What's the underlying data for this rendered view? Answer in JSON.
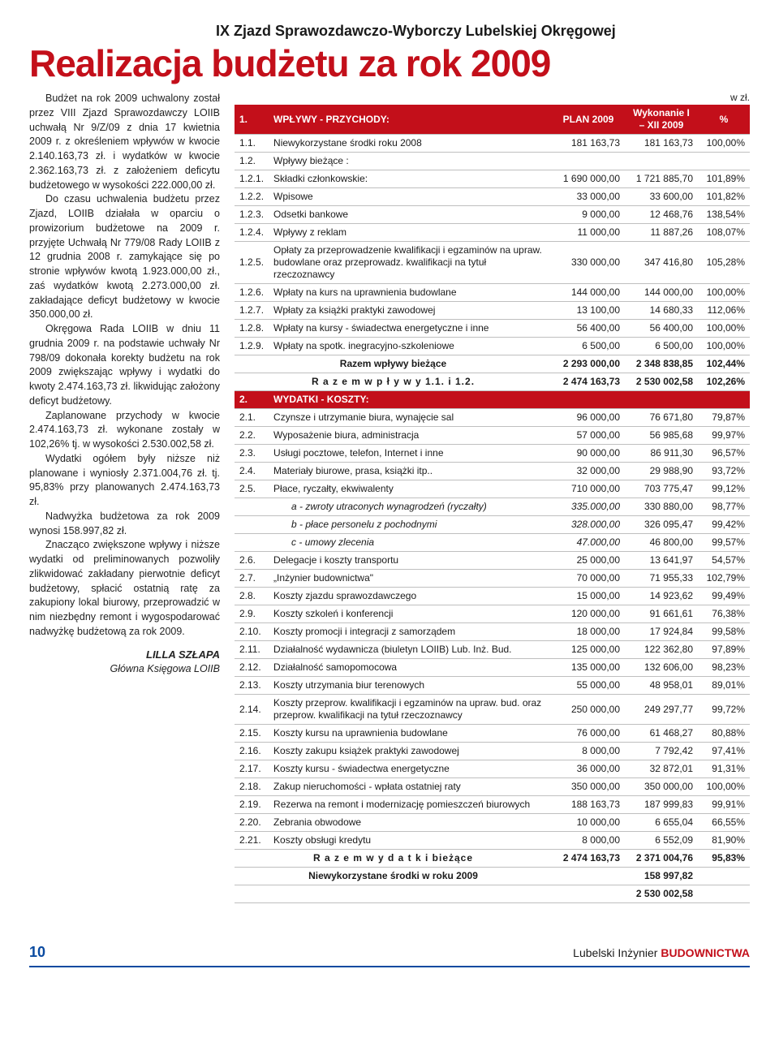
{
  "kicker": "IX Zjazd Sprawozdawczo-Wyborczy Lubelskiej Okręgowej",
  "headline": "Realizacja budżetu za rok 2009",
  "unit_label": "w zł.",
  "article": {
    "paragraphs": [
      "Budżet na rok 2009 uchwalony został przez VIII Zjazd Sprawozdawczy LOIIB uchwałą Nr 9/Z/09 z dnia 17 kwietnia 2009 r. z określeniem wpływów w kwocie 2.140.163,73 zł. i wydatków w kwocie 2.362.163,73 zł. z założeniem deficytu budżetowego w wysokości 222.000,00 zł.",
      "Do czasu uchwalenia budżetu przez Zjazd, LOIIB działała w oparciu o prowizorium budżetowe na 2009 r. przyjęte Uchwałą Nr 779/08 Rady LOIIB z 12 grudnia 2008 r. zamykające się po stronie wpływów kwotą 1.923.000,00 zł., zaś wydatków kwotą 2.273.000,00 zł. zakładające deficyt budżetowy w kwocie 350.000,00 zł.",
      "Okręgowa Rada LOIIB w dniu 11 grudnia 2009 r. na podstawie uchwały Nr 798/09 dokonała korekty budżetu na rok 2009 zwiększając wpływy i wydatki do kwoty 2.474.163,73 zł. likwidując założony deficyt budżetowy.",
      "Zaplanowane przychody w kwocie 2.474.163,73 zł. wykonane zostały w 102,26% tj. w wysokości 2.530.002,58 zł.",
      "Wydatki ogółem były niższe niż planowane i wyniosły 2.371.004,76 zł. tj. 95,83% przy planowanych 2.474.163,73 zł.",
      "Nadwyżka budżetowa za rok 2009 wynosi 158.997,82 zł.",
      "Znacząco zwiększone wpływy i niższe wydatki od preliminowanych pozwoliły zlikwidować zakładany pierwotnie deficyt budżetowy, spłacić ostatnią ratę za zakupiony lokal biurowy, przeprowadzić w nim niezbędny remont i wygospodarować nadwyżkę budżetową za rok 2009."
    ],
    "signature_name": "LILLA SZŁAPA",
    "signature_role": "Główna Księgowa LOIIB"
  },
  "table": {
    "header": {
      "col1": "1.",
      "col2": "WPŁYWY - PRZYCHODY:",
      "col3": "PLAN 2009",
      "col4": "Wykonanie I – XII 2009",
      "col5": "%"
    },
    "incomes": [
      {
        "c": "1.1.",
        "l": "Niewykorzystane środki roku 2008",
        "p": "181 163,73",
        "w": "181 163,73",
        "pct": "100,00%"
      },
      {
        "c": "1.2.",
        "l": "Wpływy bieżące :",
        "p": "",
        "w": "",
        "pct": ""
      },
      {
        "c": "1.2.1.",
        "l": "Składki członkowskie:",
        "p": "1 690 000,00",
        "w": "1 721 885,70",
        "pct": "101,89%"
      },
      {
        "c": "1.2.2.",
        "l": "Wpisowe",
        "p": "33 000,00",
        "w": "33 600,00",
        "pct": "101,82%"
      },
      {
        "c": "1.2.3.",
        "l": "Odsetki bankowe",
        "p": "9 000,00",
        "w": "12 468,76",
        "pct": "138,54%"
      },
      {
        "c": "1.2.4.",
        "l": "Wpływy z reklam",
        "p": "11 000,00",
        "w": "11 887,26",
        "pct": "108,07%"
      },
      {
        "c": "1.2.5.",
        "l": "Opłaty za przeprowadzenie kwalifikacji i egzaminów na upraw. budowlane oraz przeprowadz. kwalifikacji na tytuł rzeczoznawcy",
        "p": "330 000,00",
        "w": "347 416,80",
        "pct": "105,28%"
      },
      {
        "c": "1.2.6.",
        "l": "Wpłaty na kurs na uprawnienia budowlane",
        "p": "144 000,00",
        "w": "144 000,00",
        "pct": "100,00%"
      },
      {
        "c": "1.2.7.",
        "l": "Wpłaty za książki praktyki zawodowej",
        "p": "13 100,00",
        "w": "14 680,33",
        "pct": "112,06%"
      },
      {
        "c": "1.2.8.",
        "l": "Wpłaty na kursy - świadectwa energetyczne i inne",
        "p": "56 400,00",
        "w": "56 400,00",
        "pct": "100,00%"
      },
      {
        "c": "1.2.9.",
        "l": "Wpłaty na spotk. inegracyjno-szkoleniowe",
        "p": "6 500,00",
        "w": "6 500,00",
        "pct": "100,00%"
      }
    ],
    "sum_incomes_current": {
      "l": "Razem wpływy bieżące",
      "p": "2 293 000,00",
      "w": "2 348 838,85",
      "pct": "102,44%"
    },
    "sum_incomes_total": {
      "l": "R a z e m   w p ł y w y 1.1. i 1.2.",
      "p": "2 474 163,73",
      "w": "2 530 002,58",
      "pct": "102,26%"
    },
    "expenses_header": {
      "c": "2.",
      "l": "WYDATKI - KOSZTY:"
    },
    "expenses": [
      {
        "c": "2.1.",
        "l": "Czynsze i utrzymanie biura, wynajęcie sal",
        "p": "96 000,00",
        "w": "76 671,80",
        "pct": "79,87%"
      },
      {
        "c": "2.2.",
        "l": "Wyposażenie biura, administracja",
        "p": "57 000,00",
        "w": "56 985,68",
        "pct": "99,97%"
      },
      {
        "c": "2.3.",
        "l": "Usługi pocztowe, telefon, Internet i inne",
        "p": "90 000,00",
        "w": "86 911,30",
        "pct": "96,57%"
      },
      {
        "c": "2.4.",
        "l": "Materiały biurowe, prasa, książki itp..",
        "p": "32 000,00",
        "w": "29 988,90",
        "pct": "93,72%"
      },
      {
        "c": "2.5.",
        "l": "Płace, ryczałty, ekwiwalenty",
        "p": "710 000,00",
        "w": "703 775,47",
        "pct": "99,12%"
      }
    ],
    "expenses_sub": [
      {
        "l": "a - zwroty utraconych wynagrodzeń (ryczałty)",
        "p": "335.000,00",
        "w": "330 880,00",
        "pct": "98,77%"
      },
      {
        "l": "b - płace personelu z pochodnymi",
        "p": "328.000,00",
        "w": "326 095,47",
        "pct": "99,42%"
      },
      {
        "l": "c - umowy zlecenia",
        "p": "47.000,00",
        "w": "46 800,00",
        "pct": "99,57%"
      }
    ],
    "expenses2": [
      {
        "c": "2.6.",
        "l": "Delegacje i koszty transportu",
        "p": "25 000,00",
        "w": "13 641,97",
        "pct": "54,57%"
      },
      {
        "c": "2.7.",
        "l": "„Inżynier budownictwa\"",
        "p": "70 000,00",
        "w": "71 955,33",
        "pct": "102,79%"
      },
      {
        "c": "2.8.",
        "l": "Koszty zjazdu sprawozdawczego",
        "p": "15 000,00",
        "w": "14 923,62",
        "pct": "99,49%"
      },
      {
        "c": "2.9.",
        "l": "Koszty szkoleń i konferencji",
        "p": "120 000,00",
        "w": "91 661,61",
        "pct": "76,38%"
      },
      {
        "c": "2.10.",
        "l": "Koszty promocji i integracji z samorządem",
        "p": "18 000,00",
        "w": "17 924,84",
        "pct": "99,58%"
      },
      {
        "c": "2.11.",
        "l": "Działalność wydawnicza (biuletyn LOIIB) Lub. Inż. Bud.",
        "p": "125 000,00",
        "w": "122 362,80",
        "pct": "97,89%"
      },
      {
        "c": "2.12.",
        "l": "Działalność samopomocowa",
        "p": "135 000,00",
        "w": "132 606,00",
        "pct": "98,23%"
      },
      {
        "c": "2.13.",
        "l": "Koszty utrzymania biur terenowych",
        "p": "55 000,00",
        "w": "48 958,01",
        "pct": "89,01%"
      },
      {
        "c": "2.14.",
        "l": "Koszty przeprow. kwalifikacji i egzaminów na upraw. bud. oraz przeprow. kwalifikacji na tytuł rzeczoznawcy",
        "p": "250 000,00",
        "w": "249 297,77",
        "pct": "99,72%"
      },
      {
        "c": "2.15.",
        "l": "Koszty kursu na uprawnienia budowlane",
        "p": "76 000,00",
        "w": "61 468,27",
        "pct": "80,88%"
      },
      {
        "c": "2.16.",
        "l": "Koszty zakupu książek praktyki zawodowej",
        "p": "8 000,00",
        "w": "7 792,42",
        "pct": "97,41%"
      },
      {
        "c": "2.17.",
        "l": "Koszty kursu - świadectwa energetyczne",
        "p": "36 000,00",
        "w": "32 872,01",
        "pct": "91,31%"
      },
      {
        "c": "2.18.",
        "l": "Zakup nieruchomości - wpłata ostatniej raty",
        "p": "350 000,00",
        "w": "350 000,00",
        "pct": "100,00%"
      },
      {
        "c": "2.19.",
        "l": "Rezerwa na remont i modernizację pomieszczeń biurowych",
        "p": "188 163,73",
        "w": "187 999,83",
        "pct": "99,91%"
      },
      {
        "c": "2.20.",
        "l": "Zebrania obwodowe",
        "p": "10 000,00",
        "w": "6 655,04",
        "pct": "66,55%"
      },
      {
        "c": "2.21.",
        "l": "Koszty obsługi kredytu",
        "p": "8 000,00",
        "w": "6 552,09",
        "pct": "81,90%"
      }
    ],
    "sum_expenses": {
      "l": "R a z e m   w y d a t k i  bieżące",
      "p": "2 474 163,73",
      "w": "2 371 004,76",
      "pct": "95,83%"
    },
    "unused": {
      "l": "Niewykorzystane środki w roku 2009",
      "w": "158 997,82"
    },
    "grand_total": {
      "w": "2 530 002,58"
    }
  },
  "footer": {
    "page": "10",
    "brand_light": "Lubelski Inżynier ",
    "brand_bold": "BUDOWNICTWA"
  },
  "colors": {
    "brand_red": "#c30f1a",
    "brand_blue": "#0a4aa0",
    "border_gray": "#bfbfbf"
  }
}
